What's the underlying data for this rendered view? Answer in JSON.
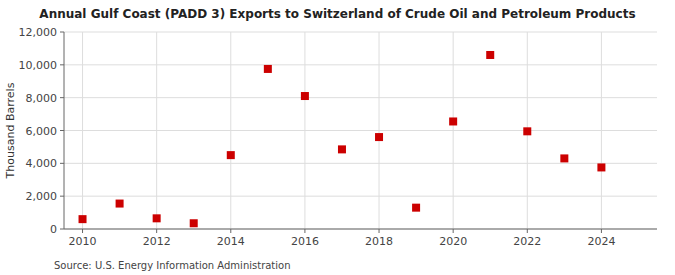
{
  "chart_data": {
    "type": "scatter",
    "title": "Annual Gulf Coast (PADD 3) Exports to Switzerland of Crude Oil and Petroleum Products",
    "y_label": "Thousand Barrels",
    "annotations": [
      "Source: U.S. Energy Information Administration"
    ],
    "x": [
      2010,
      2011,
      2012,
      2013,
      2014,
      2015,
      2016,
      2017,
      2018,
      2019,
      2020,
      2021,
      2022,
      2023,
      2024
    ],
    "values": [
      600,
      1550,
      650,
      350,
      4500,
      9750,
      8100,
      4850,
      5600,
      1300,
      6550,
      10600,
      5950,
      4300,
      3750
    ],
    "color": "#cc0000",
    "marker": "square",
    "xlim": [
      2009.5,
      2025.5
    ],
    "xticks": [
      2010,
      2012,
      2014,
      2016,
      2018,
      2020,
      2022,
      2024
    ],
    "ylim": [
      0,
      12000
    ],
    "yticks": [
      0,
      {
        "value": 2000,
        "label": "2,000"
      },
      {
        "value": 4000,
        "label": "4,000"
      },
      {
        "value": 6000,
        "label": "6,000"
      },
      {
        "value": 8000,
        "label": "8,000"
      },
      {
        "value": 10000,
        "label": "10,000"
      },
      {
        "value": 12000,
        "label": "12,000"
      }
    ],
    "grid": true
  }
}
